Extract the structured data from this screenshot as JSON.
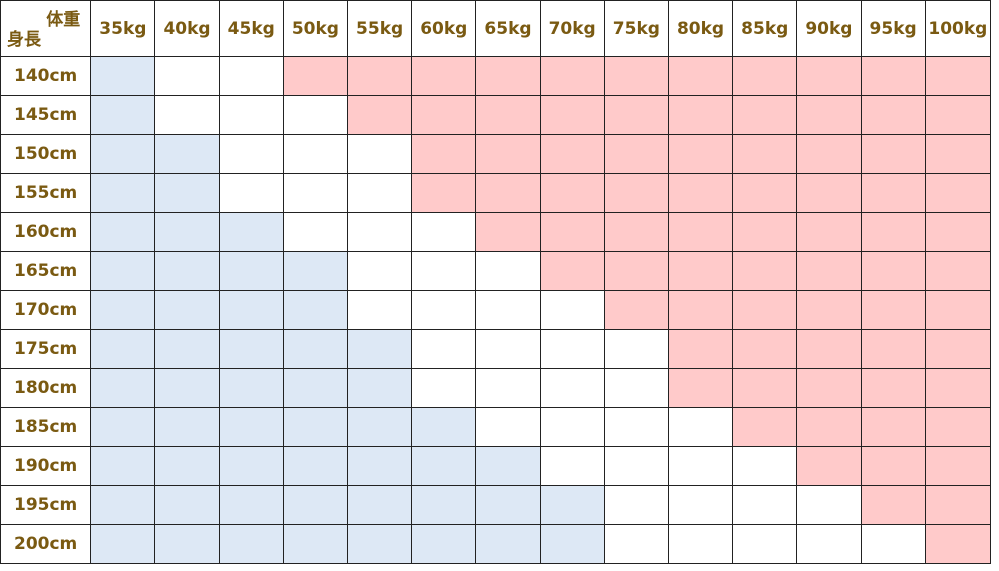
{
  "chart_data": {
    "type": "table",
    "corner": {
      "top_label": "体重",
      "bottom_label": "身長"
    },
    "columns": [
      "35kg",
      "40kg",
      "45kg",
      "50kg",
      "55kg",
      "60kg",
      "65kg",
      "70kg",
      "75kg",
      "80kg",
      "85kg",
      "90kg",
      "95kg",
      "100kg"
    ],
    "rows": [
      {
        "label": "140cm",
        "cells": [
          "blue",
          "white",
          "white",
          "pink",
          "pink",
          "pink",
          "pink",
          "pink",
          "pink",
          "pink",
          "pink",
          "pink",
          "pink",
          "pink"
        ]
      },
      {
        "label": "145cm",
        "cells": [
          "blue",
          "white",
          "white",
          "white",
          "pink",
          "pink",
          "pink",
          "pink",
          "pink",
          "pink",
          "pink",
          "pink",
          "pink",
          "pink"
        ]
      },
      {
        "label": "150cm",
        "cells": [
          "blue",
          "blue",
          "white",
          "white",
          "white",
          "pink",
          "pink",
          "pink",
          "pink",
          "pink",
          "pink",
          "pink",
          "pink",
          "pink"
        ]
      },
      {
        "label": "155cm",
        "cells": [
          "blue",
          "blue",
          "white",
          "white",
          "white",
          "pink",
          "pink",
          "pink",
          "pink",
          "pink",
          "pink",
          "pink",
          "pink",
          "pink"
        ]
      },
      {
        "label": "160cm",
        "cells": [
          "blue",
          "blue",
          "blue",
          "white",
          "white",
          "white",
          "pink",
          "pink",
          "pink",
          "pink",
          "pink",
          "pink",
          "pink",
          "pink"
        ]
      },
      {
        "label": "165cm",
        "cells": [
          "blue",
          "blue",
          "blue",
          "blue",
          "white",
          "white",
          "white",
          "pink",
          "pink",
          "pink",
          "pink",
          "pink",
          "pink",
          "pink"
        ]
      },
      {
        "label": "170cm",
        "cells": [
          "blue",
          "blue",
          "blue",
          "blue",
          "white",
          "white",
          "white",
          "white",
          "pink",
          "pink",
          "pink",
          "pink",
          "pink",
          "pink"
        ]
      },
      {
        "label": "175cm",
        "cells": [
          "blue",
          "blue",
          "blue",
          "blue",
          "blue",
          "white",
          "white",
          "white",
          "white",
          "pink",
          "pink",
          "pink",
          "pink",
          "pink"
        ]
      },
      {
        "label": "180cm",
        "cells": [
          "blue",
          "blue",
          "blue",
          "blue",
          "blue",
          "white",
          "white",
          "white",
          "white",
          "pink",
          "pink",
          "pink",
          "pink",
          "pink"
        ]
      },
      {
        "label": "185cm",
        "cells": [
          "blue",
          "blue",
          "blue",
          "blue",
          "blue",
          "blue",
          "white",
          "white",
          "white",
          "white",
          "pink",
          "pink",
          "pink",
          "pink"
        ]
      },
      {
        "label": "190cm",
        "cells": [
          "blue",
          "blue",
          "blue",
          "blue",
          "blue",
          "blue",
          "blue",
          "white",
          "white",
          "white",
          "white",
          "pink",
          "pink",
          "pink"
        ]
      },
      {
        "label": "195cm",
        "cells": [
          "blue",
          "blue",
          "blue",
          "blue",
          "blue",
          "blue",
          "blue",
          "blue",
          "white",
          "white",
          "white",
          "white",
          "pink",
          "pink"
        ]
      },
      {
        "label": "200cm",
        "cells": [
          "blue",
          "blue",
          "blue",
          "blue",
          "blue",
          "blue",
          "blue",
          "blue",
          "white",
          "white",
          "white",
          "white",
          "white",
          "pink"
        ]
      }
    ],
    "colors": {
      "blue": "#dde8f5",
      "white": "#ffffff",
      "pink": "#ffcaca",
      "text": "#7a5a12",
      "border": "#222222"
    }
  }
}
